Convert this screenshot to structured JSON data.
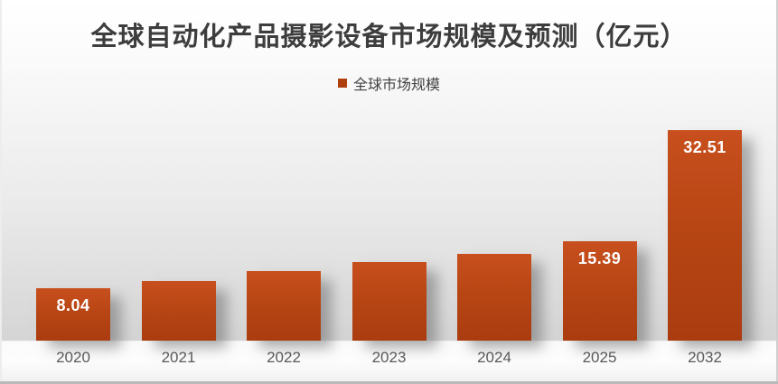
{
  "title": {
    "text": "全球自动化产品摄影设备市场规模及预测（亿元）"
  },
  "legend": {
    "items": [
      {
        "label": "全球市场规模",
        "swatch_color": "#b03f10"
      }
    ]
  },
  "chart_data": {
    "type": "bar",
    "title": "全球自动化产品摄影设备市场规模及预测（亿元）",
    "series_name": "全球市场规模",
    "categories": [
      "2020",
      "2021",
      "2022",
      "2023",
      "2024",
      "2025",
      "2032"
    ],
    "values": [
      8.04,
      9.2,
      10.8,
      12.1,
      13.4,
      15.39,
      32.51
    ],
    "data_labels": [
      "8.04",
      "",
      "",
      "",
      "",
      "15.39",
      "32.51"
    ],
    "unit": "亿元",
    "xlabel": "",
    "ylabel": "",
    "ylim": [
      0,
      35
    ],
    "grid": false,
    "legend_position": "top",
    "colors": {
      "bar_top": "#c84f1e",
      "bar_bottom": "#aa3c10",
      "data_label": "#ffffff",
      "tick_label": "#595959"
    }
  }
}
